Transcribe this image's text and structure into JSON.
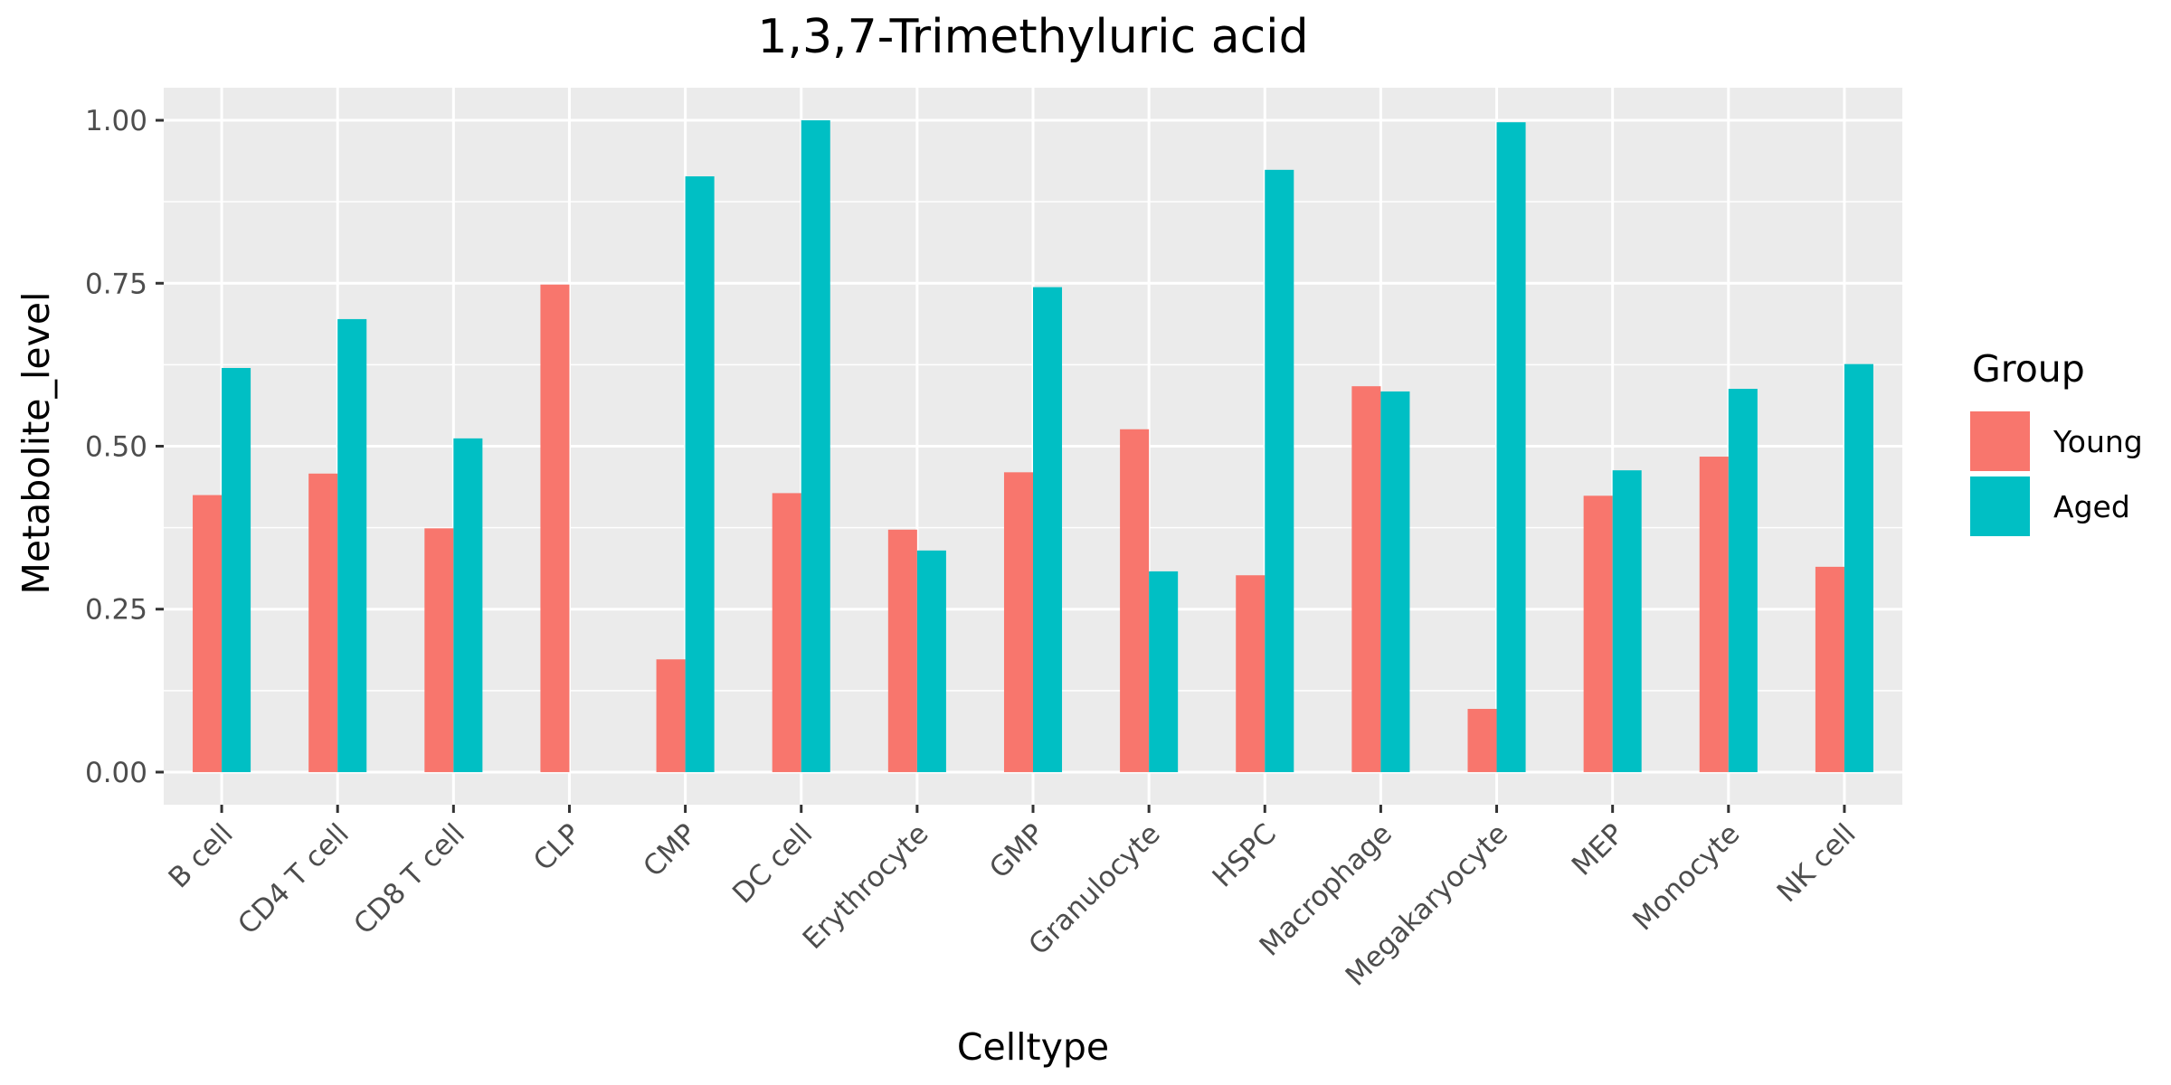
{
  "chart_data": {
    "type": "bar",
    "title": "1,3,7-Trimethyluric acid",
    "xlabel": "Celltype",
    "ylabel": "Metabolite_level",
    "categories": [
      "B cell",
      "CD4 T cell",
      "CD8 T cell",
      "CLP",
      "CMP",
      "DC cell",
      "Erythrocyte",
      "GMP",
      "Granulocyte",
      "HSPC",
      "Macrophage",
      "Megakaryocyte",
      "MEP",
      "Monocyte",
      "NK cell"
    ],
    "series": [
      {
        "name": "Young",
        "color": "#F8766D",
        "values": [
          0.425,
          0.458,
          0.374,
          0.748,
          0.173,
          0.428,
          0.372,
          0.46,
          0.526,
          0.302,
          0.592,
          0.097,
          0.424,
          0.484,
          0.315
        ]
      },
      {
        "name": "Aged",
        "color": "#00BFC4",
        "values": [
          0.62,
          0.695,
          0.512,
          null,
          0.914,
          1.0,
          0.34,
          0.744,
          0.308,
          0.924,
          0.584,
          0.997,
          0.463,
          0.588,
          0.626
        ]
      }
    ],
    "ylim": [
      -0.05,
      1.05
    ],
    "yticks": [
      0.0,
      0.25,
      0.5,
      0.75,
      1.0
    ],
    "ytick_labels": [
      "0.00",
      "0.25",
      "0.50",
      "0.75",
      "1.00"
    ],
    "grid": true,
    "panel_background": "#EBEBEB",
    "legend": {
      "title": "Group",
      "position": "right",
      "entries": [
        "Young",
        "Aged"
      ]
    }
  }
}
